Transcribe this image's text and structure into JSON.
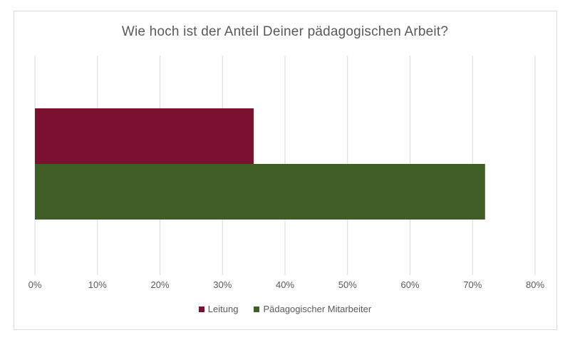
{
  "chart_data": {
    "type": "bar",
    "orientation": "horizontal",
    "title": "Wie hoch ist der Anteil Deiner pädagogischen Arbeit?",
    "xlabel": "",
    "ylabel": "",
    "xlim": [
      0,
      0.8
    ],
    "x_ticks": [
      "0%",
      "10%",
      "20%",
      "30%",
      "40%",
      "50%",
      "60%",
      "70%",
      "80%"
    ],
    "grid": "vertical",
    "legend_position": "bottom",
    "series": [
      {
        "name": "Leitung",
        "value": 0.35,
        "color": "#7b1031"
      },
      {
        "name": "Pädagogischer Mitarbeiter",
        "value": 0.72,
        "color": "#3e5e25"
      }
    ]
  }
}
